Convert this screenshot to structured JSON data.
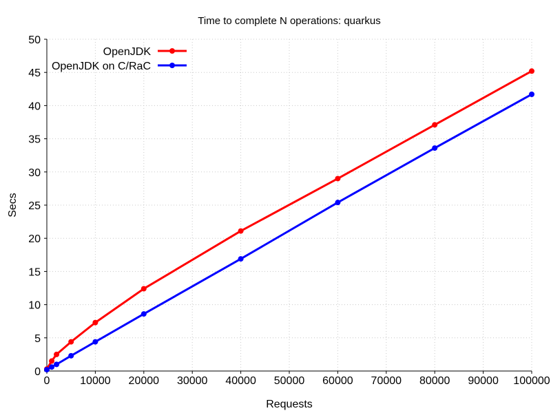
{
  "chart_data": {
    "type": "line",
    "title": "Time to complete N operations: quarkus",
    "xlabel": "Requests",
    "ylabel": "Secs",
    "xlim": [
      0,
      100000
    ],
    "ylim": [
      0,
      50
    ],
    "xticks": [
      0,
      10000,
      20000,
      30000,
      40000,
      50000,
      60000,
      70000,
      80000,
      90000,
      100000
    ],
    "yticks": [
      0,
      5,
      10,
      15,
      20,
      25,
      30,
      35,
      40,
      45,
      50
    ],
    "grid": true,
    "legend_position": "top-left",
    "series": [
      {
        "name": "OpenJDK",
        "color": "#ff0000",
        "x": [
          0,
          1000,
          2000,
          5000,
          10000,
          20000,
          40000,
          60000,
          80000,
          100000
        ],
        "y": [
          0.3,
          1.5,
          2.5,
          4.4,
          7.3,
          12.4,
          21.1,
          29.0,
          37.1,
          45.2
        ]
      },
      {
        "name": "OpenJDK on C/RaC",
        "color": "#0000ff",
        "x": [
          0,
          1000,
          2000,
          5000,
          10000,
          20000,
          40000,
          60000,
          80000,
          100000
        ],
        "y": [
          0.2,
          0.6,
          1.0,
          2.3,
          4.4,
          8.6,
          16.9,
          25.4,
          33.6,
          41.7
        ]
      }
    ]
  }
}
